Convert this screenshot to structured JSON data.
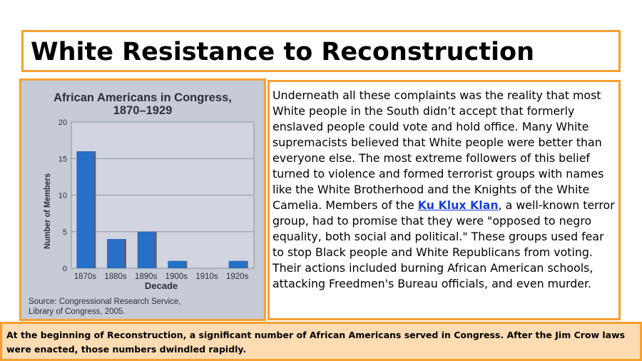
{
  "slide": {
    "title": "White Resistance to Reconstruction",
    "body_before_link": "Underneath all these complaints was the reality that most White people in the South didn’t accept that formerly enslaved people could vote and hold office. Many White supremacists believed that White people were better than everyone else. The most extreme followers of this belief turned to violence and formed terrorist groups with names like the White Brotherhood and the Knights of the White Camelia. Members of the ",
    "body_link": "Ku Klux Klan",
    "body_after_link": ", a well-known terror group, had to promise that they were \"opposed to negro equality, both social and political.\" These groups used fear to stop Black people and White Republicans from voting. Their actions included burning African American schools, attacking Freedmen's Bureau officials, and even murder.",
    "caption": "At the beginning of Reconstruction, a significant number of African Americans served in Congress. After the Jim Crow laws were enacted, those numbers dwindled rapidly."
  },
  "chart_data": {
    "type": "bar",
    "title_line1": "African Americans in Congress,",
    "title_line2": "1870–1929",
    "categories": [
      "1870s",
      "1880s",
      "1890s",
      "1900s",
      "1910s",
      "1920s"
    ],
    "values": [
      16,
      4,
      5,
      1,
      0,
      1
    ],
    "xlabel": "Decade",
    "ylabel": "Number of Members",
    "ylim": [
      0,
      20
    ],
    "yticks": [
      0,
      5,
      10,
      15,
      20
    ],
    "grid": true,
    "source_line1": "Source: Congressional Research Service,",
    "source_line2": "Library of Congress, 2005.",
    "colors": {
      "bar": "#2670c8",
      "bar_shadow": "#5a5f78",
      "plot_bg": "#d2d5df",
      "grid": "#8d93a6",
      "text": "#2b2f3e"
    }
  }
}
